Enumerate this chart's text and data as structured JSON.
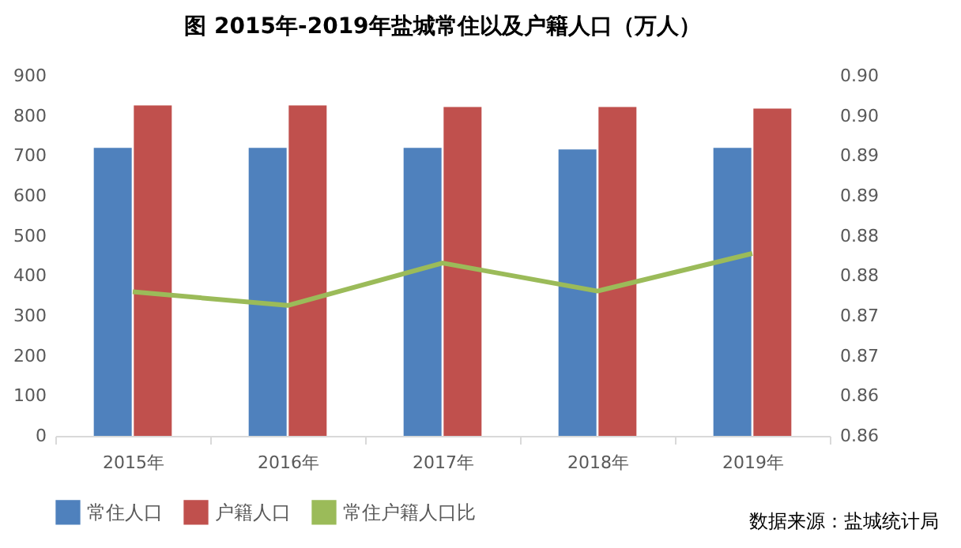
{
  "chart_data": {
    "type": "bar",
    "title": "图 2015年-2019年盐城常住以及户籍人口（万人）",
    "categories": [
      "2015年",
      "2016年",
      "2017年",
      "2018年",
      "2019年"
    ],
    "series": [
      {
        "name": "常住人口",
        "color": "#4f81bd",
        "values": [
          720,
          720,
          720,
          716,
          720
        ]
      },
      {
        "name": "户籍人口",
        "color": "#c0504d",
        "values": [
          826,
          826,
          822,
          822,
          818
        ]
      },
      {
        "name": "常住户籍人口比",
        "type": "line",
        "axis": "y2",
        "color": "#9bbb59",
        "values": [
          0.878,
          0.8763,
          0.8816,
          0.8781,
          0.8828
        ]
      }
    ],
    "ylim": [
      0,
      900
    ],
    "yticks": [
      0,
      100,
      200,
      300,
      400,
      500,
      600,
      700,
      800,
      900
    ],
    "y2lim": [
      0.86,
      0.905
    ],
    "y2ticks": [
      0.86,
      {
        "value": 0.865,
        "label": "0.86"
      },
      0.87,
      {
        "value": 0.875,
        "label": "0.87"
      },
      0.88,
      {
        "value": 0.885,
        "label": "0.88"
      },
      0.89,
      {
        "value": 0.895,
        "label": "0.89"
      },
      {
        "value": 0.9,
        "label": "0.90"
      },
      {
        "value": 0.905,
        "label": "0.90"
      }
    ],
    "legend": "bottom",
    "grid": false,
    "marker": "none",
    "line_style": "solid",
    "annotations": [
      "数据来源：盐城统计局"
    ]
  }
}
